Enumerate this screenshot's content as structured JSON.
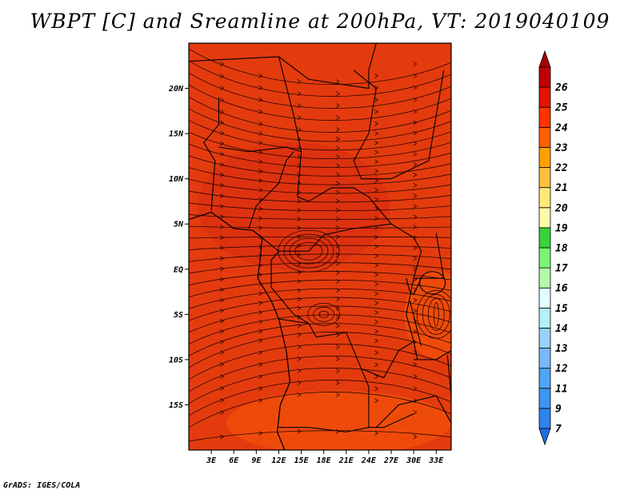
{
  "title": "WBPT [C] and Sreamline at 200hPa, VT: 2019040109",
  "footer": "GrADS: IGES/COLA",
  "map": {
    "lon_range": [
      0,
      35
    ],
    "lat_range": [
      -20,
      25
    ],
    "field_color": "#e33b0e",
    "field_color_warm": "#f0500a",
    "field_color_cool": "#d72a10",
    "lat_ticks": [
      {
        "lat": 20,
        "label": "20N"
      },
      {
        "lat": 15,
        "label": "15N"
      },
      {
        "lat": 10,
        "label": "10N"
      },
      {
        "lat": 5,
        "label": "5N"
      },
      {
        "lat": 0,
        "label": "EQ"
      },
      {
        "lat": -5,
        "label": "5S"
      },
      {
        "lat": -10,
        "label": "10S"
      },
      {
        "lat": -15,
        "label": "15S"
      }
    ],
    "lon_ticks": [
      {
        "lon": 3,
        "label": "3E"
      },
      {
        "lon": 6,
        "label": "6E"
      },
      {
        "lon": 9,
        "label": "9E"
      },
      {
        "lon": 12,
        "label": "12E"
      },
      {
        "lon": 15,
        "label": "15E"
      },
      {
        "lon": 18,
        "label": "18E"
      },
      {
        "lon": 21,
        "label": "21E"
      },
      {
        "lon": 24,
        "label": "24E"
      },
      {
        "lon": 27,
        "label": "27E"
      },
      {
        "lon": 30,
        "label": "30E"
      },
      {
        "lon": 33,
        "label": "33E"
      }
    ]
  },
  "colorbar": {
    "bins": [
      {
        "color": "#1e6ee6",
        "label": "7"
      },
      {
        "color": "#2c83f0",
        "label": "9"
      },
      {
        "color": "#3c96f5",
        "label": "11"
      },
      {
        "color": "#50a5f5",
        "label": "12"
      },
      {
        "color": "#78b9fa",
        "label": "13"
      },
      {
        "color": "#96d2fa",
        "label": "14"
      },
      {
        "color": "#b4f0fa",
        "label": "15"
      },
      {
        "color": "#e1ffff",
        "label": "16"
      },
      {
        "color": "#b4faaa",
        "label": "17"
      },
      {
        "color": "#78f573",
        "label": "18"
      },
      {
        "color": "#37d23c",
        "label": "19"
      },
      {
        "color": "#fffaaa",
        "label": "20"
      },
      {
        "color": "#ffe878",
        "label": "21"
      },
      {
        "color": "#ffc03c",
        "label": "22"
      },
      {
        "color": "#ffa000",
        "label": "23"
      },
      {
        "color": "#ff6000",
        "label": "24"
      },
      {
        "color": "#ff3200",
        "label": "25"
      },
      {
        "color": "#e11400",
        "label": "26"
      },
      {
        "color": "#c00000",
        "label": ""
      },
      {
        "color": "#a50000",
        "label": ""
      }
    ]
  }
}
